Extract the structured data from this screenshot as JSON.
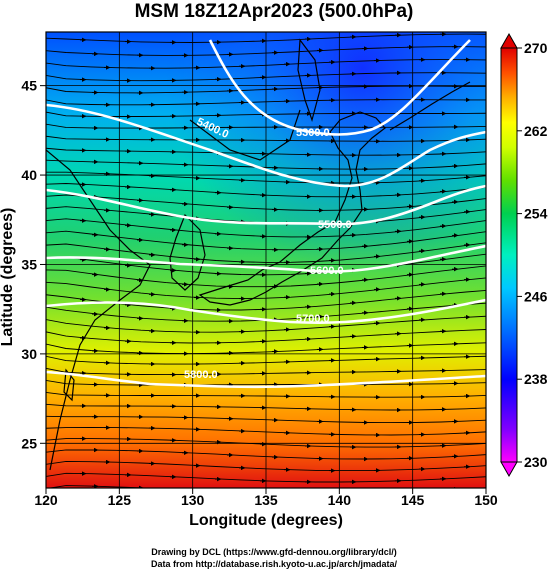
{
  "title": "MSM 18Z12Apr2023 (500.0hPa)",
  "xlabel": "Longitude (degrees)",
  "ylabel": "Latitude  (degrees)",
  "x_ticks": [
    "120",
    "125",
    "130",
    "135",
    "140",
    "145",
    "150"
  ],
  "y_ticks": [
    "25",
    "30",
    "35",
    "40",
    "45"
  ],
  "colorbar": {
    "min": 230,
    "max": 270,
    "tick_labels": [
      "270",
      "262",
      "254",
      "246",
      "238",
      "230"
    ],
    "colors": [
      "#ff00ff",
      "#8000ff",
      "#0000ff",
      "#0060ff",
      "#00c0ff",
      "#00ffc0",
      "#00d050",
      "#40d000",
      "#c0ff00",
      "#ffff00",
      "#ffc000",
      "#ff8000",
      "#ff3000",
      "#e00000"
    ]
  },
  "contours": [
    {
      "label": "5300.0"
    },
    {
      "label": "5400.0"
    },
    {
      "label": "5500.0"
    },
    {
      "label": "5600.0"
    },
    {
      "label": "5700.0"
    },
    {
      "label": "5800.0"
    }
  ],
  "credits": {
    "line1": "Drawing by DCL (https://www.gfd-dennou.org/library/dcl/)",
    "line2": "Data from http://database.rish.kyoto-u.ac.jp/arch/jmadata/"
  }
}
